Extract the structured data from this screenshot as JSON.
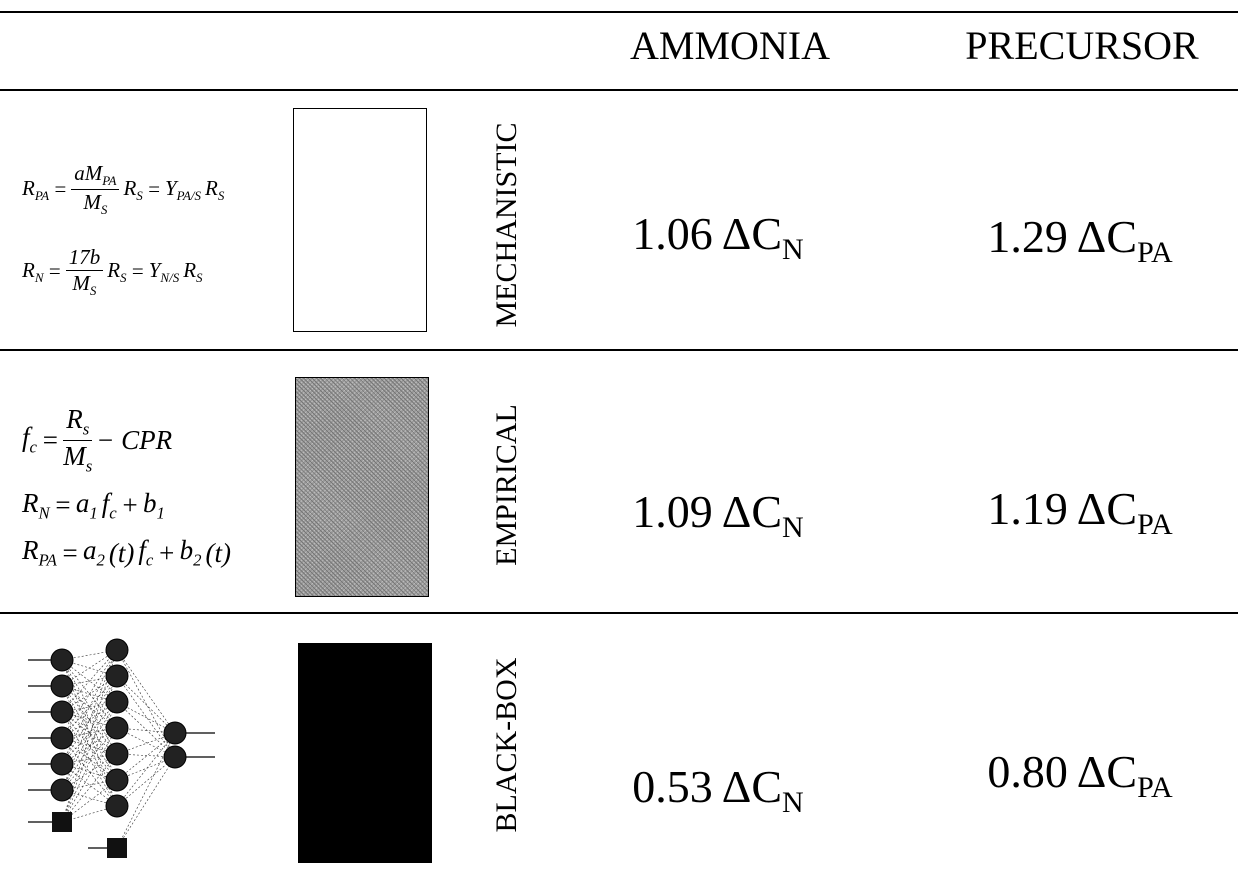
{
  "table": {
    "header": [
      "AMMONIA",
      "PRECURSOR"
    ],
    "rows": [
      {
        "label": "MECHANISTIC",
        "equations": [
          [
            {
              "base": "R",
              "sub": "PA"
            },
            "=",
            {
              "num": [
                "a",
                {
                  "base": "M",
                  "sub": "PA"
                }
              ],
              "den": [
                {
                  "base": "M",
                  "sub": "S"
                }
              ]
            },
            {
              "base": "R",
              "sub": "S"
            },
            "=",
            {
              "base": "Y",
              "sub": "PA/S"
            },
            {
              "base": "R",
              "sub": "S"
            }
          ],
          [
            {
              "base": "R",
              "sub": "N"
            },
            "=",
            {
              "num": [
                "17b"
              ],
              "den": [
                {
                  "base": "M",
                  "sub": "S"
                }
              ]
            },
            {
              "base": "R",
              "sub": "S"
            },
            "=",
            {
              "base": "Y",
              "sub": "N/S"
            },
            {
              "base": "R",
              "sub": "S"
            }
          ]
        ],
        "ammonia": {
          "value": "1.06",
          "symbol": "ΔC",
          "sub": "N"
        },
        "precursor": {
          "value": "1.29",
          "symbol": "ΔC",
          "sub": "PA"
        }
      },
      {
        "label": "EMPIRICAL",
        "equations": [
          [
            {
              "base": "f",
              "sub": "c"
            },
            "=",
            {
              "num": [
                {
                  "base": "R",
                  "sub": "s"
                }
              ],
              "den": [
                {
                  "base": "M",
                  "sub": "s"
                }
              ]
            },
            "− CPR"
          ],
          [
            {
              "base": "R",
              "sub": "N"
            },
            "=",
            {
              "base": "a",
              "sub": "1"
            },
            {
              "base": "f",
              "sub": "c"
            },
            "+",
            {
              "base": "b",
              "sub": "1"
            }
          ],
          [
            {
              "base": "R",
              "sub": "PA"
            },
            "=",
            {
              "base": "a",
              "sub": "2"
            },
            "(t)",
            {
              "base": "f",
              "sub": "c"
            },
            "+",
            {
              "base": "b",
              "sub": "2"
            },
            "(t)"
          ]
        ],
        "ammonia": {
          "value": "1.09",
          "symbol": "ΔC",
          "sub": "N"
        },
        "precursor": {
          "value": "1.19",
          "symbol": "ΔC",
          "sub": "PA"
        }
      },
      {
        "label": "BLACK-BOX",
        "ammonia": {
          "value": "0.53",
          "symbol": "ΔC",
          "sub": "N"
        },
        "precursor": {
          "value": "0.80",
          "symbol": "ΔC",
          "sub": "PA"
        }
      }
    ]
  }
}
